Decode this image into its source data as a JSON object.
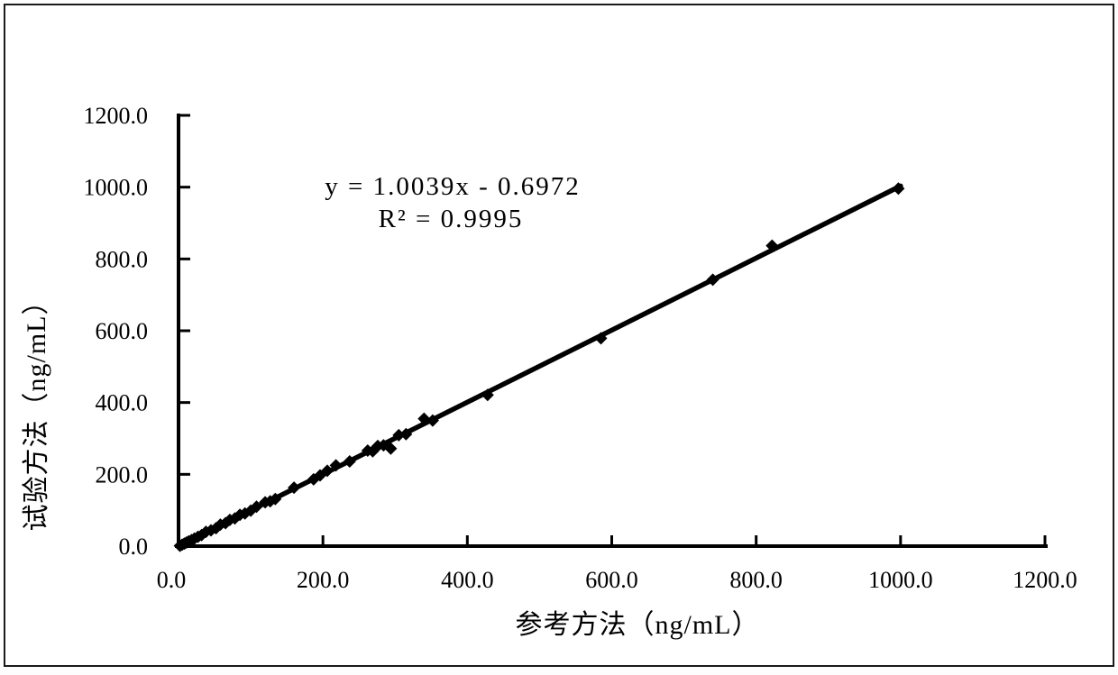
{
  "page": {
    "background": "#ffffff",
    "border_color": "#1b1b1b"
  },
  "chart_data": {
    "type": "scatter",
    "title": "",
    "xlabel": "参考方法（ng/mL）",
    "ylabel": "试验方法（ng/mL）",
    "xlim": [
      0,
      1200
    ],
    "ylim": [
      0,
      1200
    ],
    "x_ticks": [
      0,
      200,
      400,
      600,
      800,
      1000,
      1200
    ],
    "y_ticks": [
      0,
      200,
      400,
      600,
      800,
      1000,
      1200
    ],
    "tick_decimals": 1,
    "grid": false,
    "legend": false,
    "annotations": {
      "equation": "y = 1.0039x - 0.6972",
      "r_squared": "R² = 0.9995"
    },
    "trendline": {
      "slope": 1.0039,
      "intercept": -0.6972,
      "x_start": 2,
      "x_end": 1000,
      "color": "#000000",
      "stroke_width": 5.5
    },
    "marker": {
      "shape": "diamond",
      "color": "#000000",
      "size": 14
    },
    "series": [
      {
        "name": "试验方法 vs 参考方法",
        "points": [
          [
            2,
            1
          ],
          [
            5,
            4
          ],
          [
            8,
            7
          ],
          [
            11,
            10
          ],
          [
            14,
            13
          ],
          [
            18,
            17
          ],
          [
            22,
            21
          ],
          [
            27,
            26
          ],
          [
            32,
            31
          ],
          [
            38,
            40
          ],
          [
            45,
            44
          ],
          [
            52,
            50
          ],
          [
            58,
            60
          ],
          [
            65,
            64
          ],
          [
            71,
            73
          ],
          [
            78,
            77
          ],
          [
            85,
            87
          ],
          [
            92,
            91
          ],
          [
            100,
            99
          ],
          [
            108,
            110
          ],
          [
            120,
            122
          ],
          [
            127,
            125
          ],
          [
            134,
            131
          ],
          [
            160,
            163
          ],
          [
            187,
            186
          ],
          [
            196,
            197
          ],
          [
            206,
            210
          ],
          [
            218,
            225
          ],
          [
            237,
            236
          ],
          [
            262,
            266
          ],
          [
            269,
            264
          ],
          [
            276,
            279
          ],
          [
            284,
            281
          ],
          [
            294,
            272
          ],
          [
            305,
            309
          ],
          [
            315,
            312
          ],
          [
            340,
            355
          ],
          [
            352,
            350
          ],
          [
            428,
            421
          ],
          [
            585,
            579
          ],
          [
            740,
            742
          ],
          [
            822,
            837
          ],
          [
            997,
            996
          ]
        ]
      }
    ]
  }
}
